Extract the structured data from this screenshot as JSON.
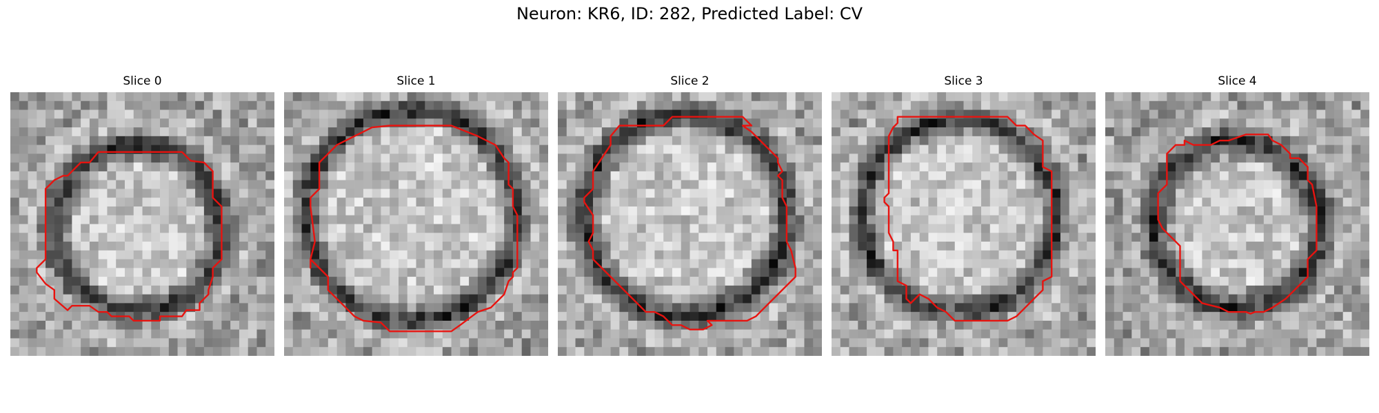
{
  "figure": {
    "title": "Neuron: KR6, ID: 282, Predicted Label: CV",
    "contour_color": "#e8130f",
    "colormap": "gray",
    "panels": [
      {
        "title": "Slice 0"
      },
      {
        "title": "Slice 1"
      },
      {
        "title": "Slice 2"
      },
      {
        "title": "Slice 3"
      },
      {
        "title": "Slice 4"
      }
    ]
  }
}
